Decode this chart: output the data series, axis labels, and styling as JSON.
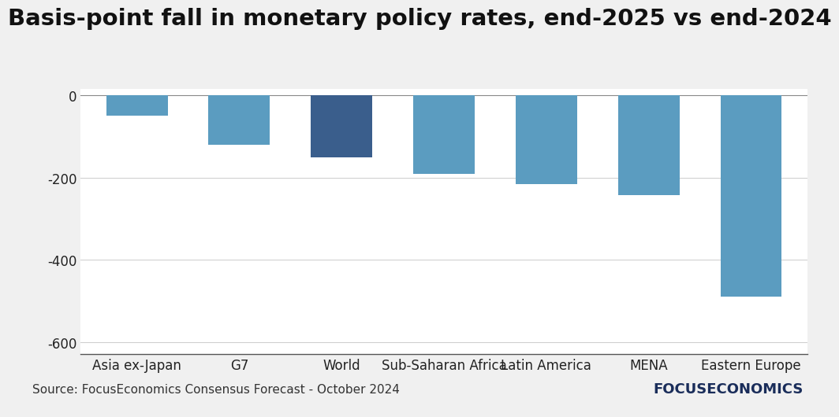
{
  "categories": [
    "Asia ex-Japan",
    "G7",
    "World",
    "Sub-Saharan Africa",
    "Latin America",
    "MENA",
    "Eastern Europe"
  ],
  "values": [
    -50,
    -120,
    -150,
    -190,
    -215,
    -243,
    -490
  ],
  "bar_colors": [
    "#5b9cc0",
    "#5b9cc0",
    "#3a5e8c",
    "#5b9cc0",
    "#5b9cc0",
    "#5b9cc0",
    "#5b9cc0"
  ],
  "title": "Basis-point fall in monetary policy rates, end-2025 vs end-2024",
  "ylim": [
    -630,
    15
  ],
  "yticks": [
    0,
    -200,
    -400,
    -600
  ],
  "background_color": "#f0f0f0",
  "plot_bg_color": "#ffffff",
  "footer_bg_color": "#c8c8c8",
  "source_text": "Source: FocusEconomics Consensus Forecast - October 2024",
  "brand_text": "FOCUSECONOMICS",
  "title_fontsize": 21,
  "axis_fontsize": 12,
  "tick_fontsize": 12,
  "source_fontsize": 11,
  "brand_fontsize": 13
}
